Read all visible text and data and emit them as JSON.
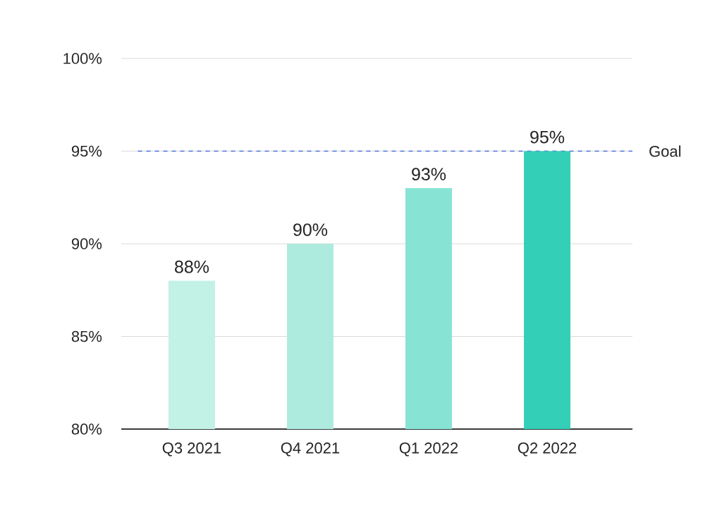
{
  "chart_data": {
    "type": "bar",
    "categories": [
      "Q3 2021",
      "Q4 2021",
      "Q1 2022",
      "Q2 2022"
    ],
    "values": [
      88,
      90,
      93,
      95
    ],
    "colors": [
      "#c2f1e5",
      "#aeebdf",
      "#87e4d5",
      "#33cfb7"
    ],
    "value_labels": [
      "88%",
      "90%",
      "93%",
      "95%"
    ],
    "ylim": [
      80,
      100
    ],
    "yticks": [
      {
        "value": 80,
        "label": "80%"
      },
      {
        "value": 85,
        "label": "85%"
      },
      {
        "value": 90,
        "label": "90%"
      },
      {
        "value": 95,
        "label": "95%"
      },
      {
        "value": 100,
        "label": "100%"
      }
    ],
    "grid": "y",
    "ref_lines": [
      {
        "axis": "y",
        "value": 95,
        "label": "Goal",
        "color": "#4a6fd8",
        "line_style": "dashed"
      }
    ]
  }
}
